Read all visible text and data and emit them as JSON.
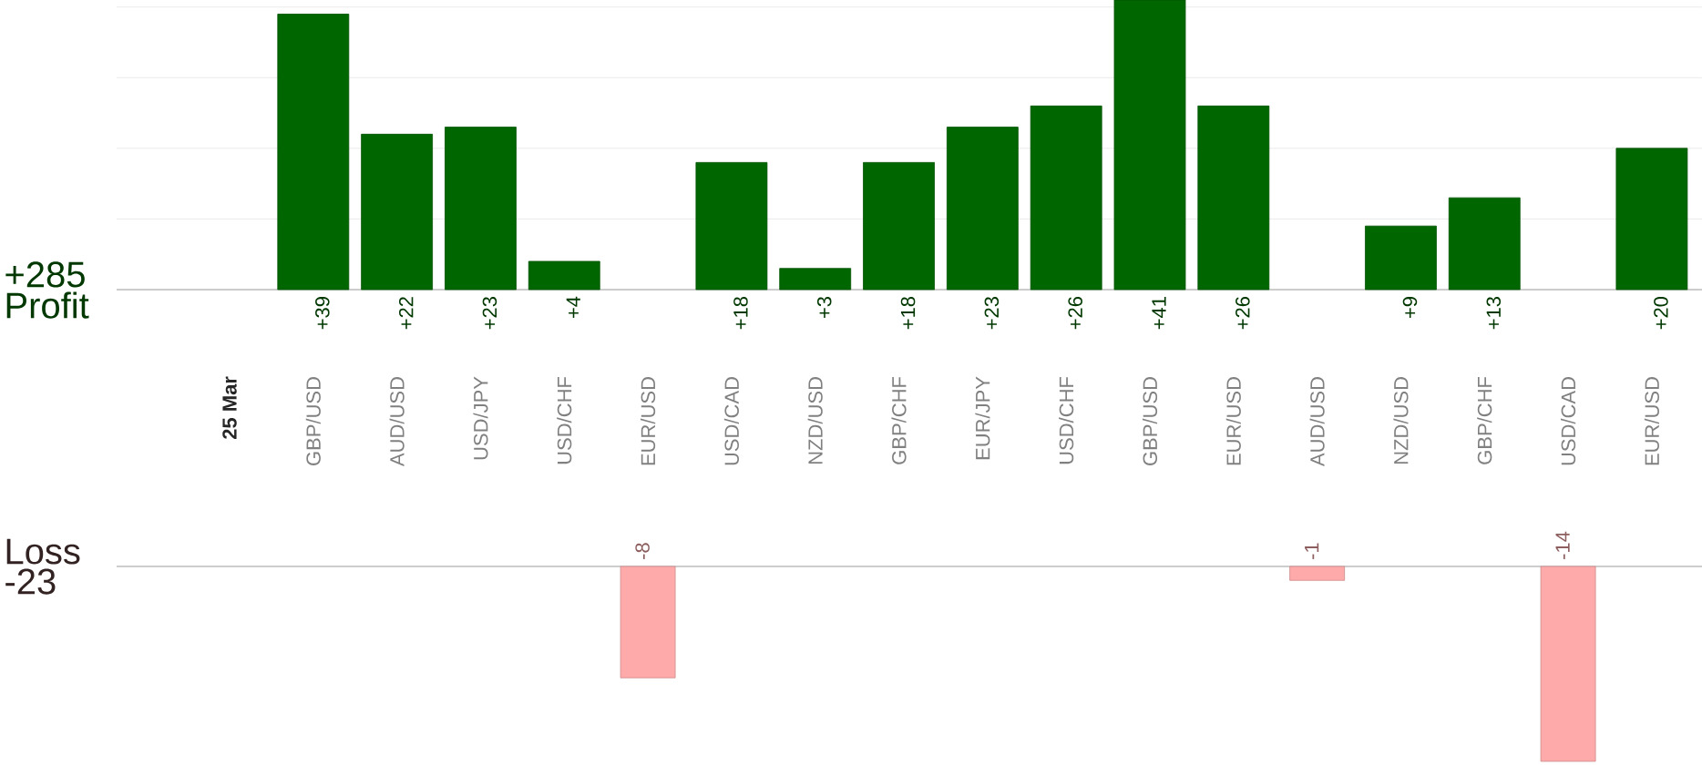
{
  "chart_data": [
    {
      "type": "bar",
      "ylabel": "Profit",
      "annotations": [
        "+285"
      ],
      "categories": [
        "25 Mar",
        "GBP/USD",
        "AUD/USD",
        "USD/JPY",
        "USD/CHF",
        "EUR/USD",
        "USD/CAD",
        "NZD/USD",
        "GBP/CHF",
        "EUR/JPY",
        "USD/CHF",
        "GBP/USD",
        "EUR/USD",
        "AUD/USD",
        "NZD/USD",
        "GBP/CHF",
        "USD/CAD",
        "EUR/USD"
      ],
      "values": [
        null,
        39,
        22,
        23,
        4,
        null,
        18,
        3,
        18,
        23,
        26,
        41,
        26,
        null,
        9,
        13,
        null,
        20
      ],
      "value_labels": [
        null,
        "+39",
        "+22",
        "+23",
        "+4",
        null,
        "+18",
        "+3",
        "+18",
        "+23",
        "+26",
        "+41",
        "+26",
        null,
        "+9",
        "+13",
        null,
        "+20"
      ],
      "color": "#006600",
      "grid": "y",
      "tick_labels": "x"
    },
    {
      "type": "bar",
      "ylabel": "Loss",
      "annotations": [
        "-23"
      ],
      "values": [
        null,
        null,
        null,
        null,
        null,
        -8,
        null,
        null,
        null,
        null,
        null,
        null,
        null,
        -1,
        null,
        null,
        -14,
        null
      ],
      "value_labels": [
        null,
        null,
        null,
        null,
        null,
        "-8",
        null,
        null,
        null,
        null,
        null,
        null,
        null,
        "-1",
        null,
        null,
        "-14",
        null
      ],
      "color": "#ffaaaa",
      "tick_labels": false
    }
  ]
}
